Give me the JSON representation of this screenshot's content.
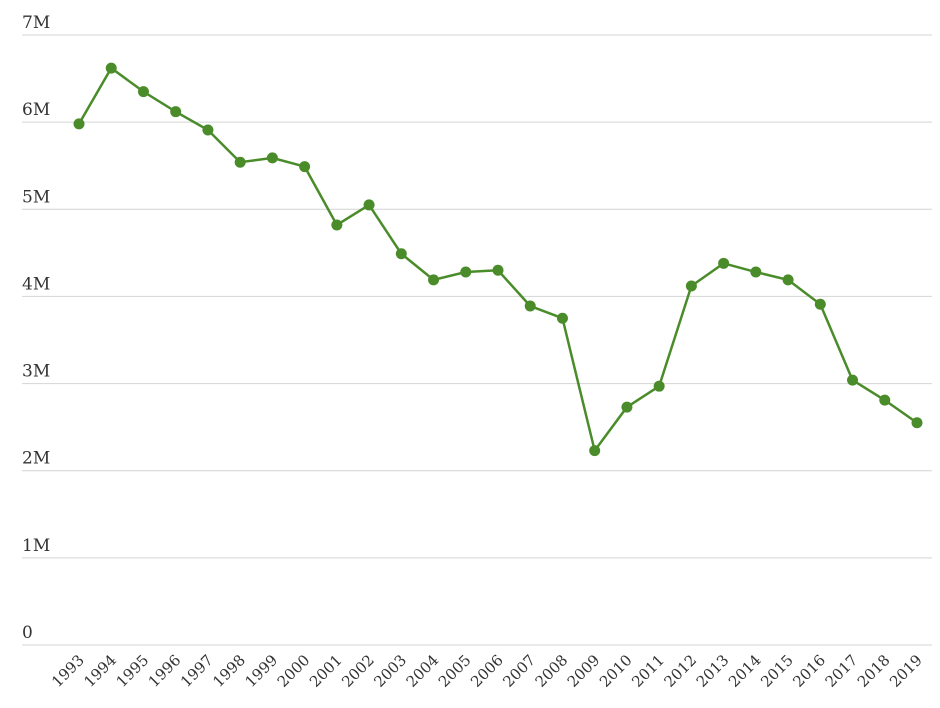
{
  "chart_data": {
    "type": "line",
    "categories": [
      "1993",
      "1994",
      "1995",
      "1996",
      "1997",
      "1998",
      "1999",
      "2000",
      "2001",
      "2002",
      "2003",
      "2004",
      "2005",
      "2006",
      "2007",
      "2008",
      "2009",
      "2010",
      "2011",
      "2012",
      "2013",
      "2014",
      "2015",
      "2016",
      "2017",
      "2018",
      "2019"
    ],
    "values": [
      5980000,
      6620000,
      6350000,
      6120000,
      5910000,
      5540000,
      5590000,
      5490000,
      4820000,
      5050000,
      4490000,
      4190000,
      4280000,
      4300000,
      3890000,
      3750000,
      2230000,
      2730000,
      2970000,
      4120000,
      4380000,
      4280000,
      4190000,
      3910000,
      3040000,
      2810000,
      2550000
    ],
    "color": "#4a8c2a",
    "ylim": [
      0,
      7000000
    ],
    "yticks": [
      {
        "value": 0,
        "label": "0"
      },
      {
        "value": 1000000,
        "label": "1M"
      },
      {
        "value": 2000000,
        "label": "2M"
      },
      {
        "value": 3000000,
        "label": "3M"
      },
      {
        "value": 4000000,
        "label": "4M"
      },
      {
        "value": 5000000,
        "label": "5M"
      },
      {
        "value": 6000000,
        "label": "6M"
      },
      {
        "value": 7000000,
        "label": "7M"
      }
    ],
    "grid": true
  }
}
